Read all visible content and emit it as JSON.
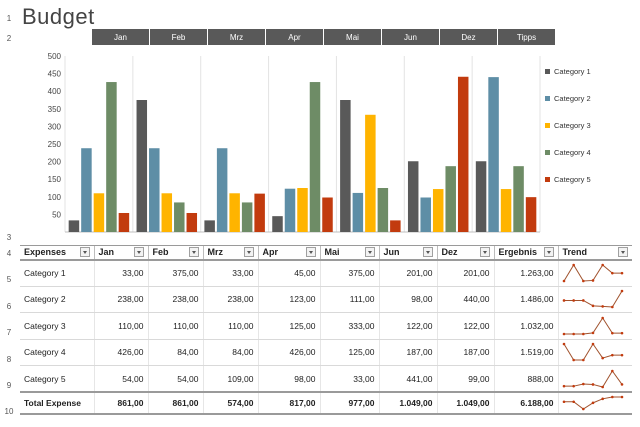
{
  "title": "Budget",
  "row_numbers": [
    "1",
    "2",
    "3",
    "4",
    "5",
    "6",
    "7",
    "8",
    "9",
    "10"
  ],
  "tabs": [
    "Jan",
    "Feb",
    "Mrz",
    "Apr",
    "Mai",
    "Jun",
    "Dez",
    "Tipps"
  ],
  "chart_data": {
    "type": "bar",
    "categories": [
      "Jan",
      "Feb",
      "Mrz",
      "Apr",
      "Mai",
      "Jun",
      "Dez"
    ],
    "series": [
      {
        "name": "Category 1",
        "color": "#595959",
        "values": [
          33,
          375,
          33,
          45,
          375,
          201,
          201
        ]
      },
      {
        "name": "Category 2",
        "color": "#5e8ea6",
        "values": [
          238,
          238,
          238,
          123,
          111,
          98,
          440
        ]
      },
      {
        "name": "Category 3",
        "color": "#ffb400",
        "values": [
          110,
          110,
          110,
          125,
          333,
          122,
          122
        ]
      },
      {
        "name": "Category 4",
        "color": "#6e8c66",
        "values": [
          426,
          84,
          84,
          426,
          125,
          187,
          187
        ]
      },
      {
        "name": "Category 5",
        "color": "#c23b0e",
        "values": [
          54,
          54,
          109,
          98,
          33,
          441,
          99
        ]
      }
    ],
    "yticks": [
      50,
      100,
      150,
      200,
      250,
      300,
      350,
      400,
      450,
      500
    ],
    "ylim": [
      0,
      500
    ],
    "legend": "right"
  },
  "table": {
    "headers": [
      "Expenses",
      "Jan",
      "Feb",
      "Mrz",
      "Apr",
      "Mai",
      "Jun",
      "Dez",
      "Ergebnis",
      "Trend"
    ],
    "rows": [
      {
        "label": "Category 1",
        "values": [
          "33,00",
          "375,00",
          "33,00",
          "45,00",
          "375,00",
          "201,00",
          "201,00",
          "1.263,00"
        ],
        "trend": [
          33,
          375,
          33,
          45,
          375,
          201,
          201
        ]
      },
      {
        "label": "Category 2",
        "values": [
          "238,00",
          "238,00",
          "238,00",
          "123,00",
          "111,00",
          "98,00",
          "440,00",
          "1.486,00"
        ],
        "trend": [
          238,
          238,
          238,
          123,
          111,
          98,
          440
        ]
      },
      {
        "label": "Category 3",
        "values": [
          "110,00",
          "110,00",
          "110,00",
          "125,00",
          "333,00",
          "122,00",
          "122,00",
          "1.032,00"
        ],
        "trend": [
          110,
          110,
          110,
          125,
          333,
          122,
          122
        ]
      },
      {
        "label": "Category 4",
        "values": [
          "426,00",
          "84,00",
          "84,00",
          "426,00",
          "125,00",
          "187,00",
          "187,00",
          "1.519,00"
        ],
        "trend": [
          426,
          84,
          84,
          426,
          125,
          187,
          187
        ]
      },
      {
        "label": "Category 5",
        "values": [
          "54,00",
          "54,00",
          "109,00",
          "98,00",
          "33,00",
          "441,00",
          "99,00",
          "888,00"
        ],
        "trend": [
          54,
          54,
          109,
          98,
          33,
          441,
          99
        ]
      }
    ],
    "total": {
      "label": "Total Expense",
      "values": [
        "861,00",
        "861,00",
        "574,00",
        "817,00",
        "977,00",
        "1.049,00",
        "1.049,00",
        "6.188,00"
      ],
      "trend": [
        861,
        861,
        574,
        817,
        977,
        1049,
        1049
      ]
    }
  },
  "colors": {
    "tab_bg": "#595959",
    "sparkline": "#a0522d",
    "sparkline_marker": "#c23b0e"
  }
}
